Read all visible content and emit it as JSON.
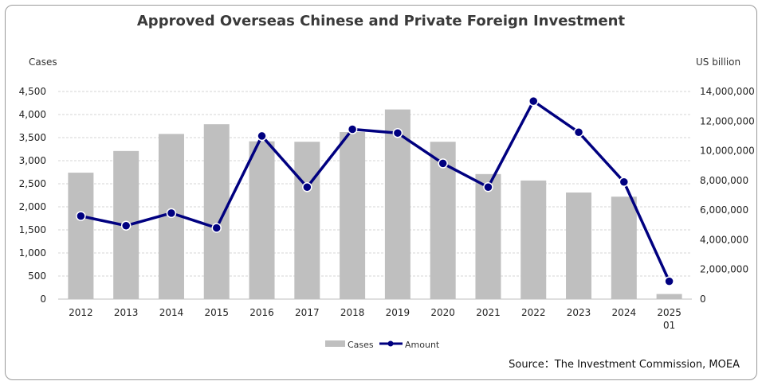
{
  "chart_data": {
    "type": "bar",
    "title": "Approved Overseas Chinese and Private Foreign Investment",
    "categories": [
      "2012",
      "2013",
      "2014",
      "2015",
      "2016",
      "2017",
      "2018",
      "2019",
      "2020",
      "2021",
      "2022",
      "2023",
      "2024",
      "2025 01"
    ],
    "y_left_label": "Cases",
    "y_right_label": "US billion",
    "y_left_ticks": [
      "0",
      "500",
      "1,000",
      "1,500",
      "2,000",
      "2,500",
      "3,000",
      "3,500",
      "4,000",
      "4,500"
    ],
    "y_right_ticks": [
      "0",
      "2,000,000",
      "4,000,000",
      "6,000,000",
      "8,000,000",
      "10,000,000",
      "12,000,000",
      "14,000,000"
    ],
    "ylim_left": [
      0,
      4500
    ],
    "ylim_right": [
      0,
      14000000
    ],
    "series": [
      {
        "name": "Cases",
        "kind": "bar",
        "axis": "left",
        "color": "#bfbfbf",
        "values": [
          2740,
          3210,
          3580,
          3790,
          3420,
          3410,
          3620,
          4110,
          3410,
          2710,
          2570,
          2310,
          2220,
          110
        ]
      },
      {
        "name": "Amount",
        "kind": "line",
        "axis": "right",
        "color": "#000080",
        "values": [
          5600000,
          4950000,
          5800000,
          4800000,
          11000000,
          7550000,
          11450000,
          11200000,
          9150000,
          7550000,
          13350000,
          11250000,
          7900000,
          1200000
        ]
      }
    ],
    "grid": true,
    "legend": "bottom"
  },
  "source": "Source：The Investment Commission, MOEA"
}
